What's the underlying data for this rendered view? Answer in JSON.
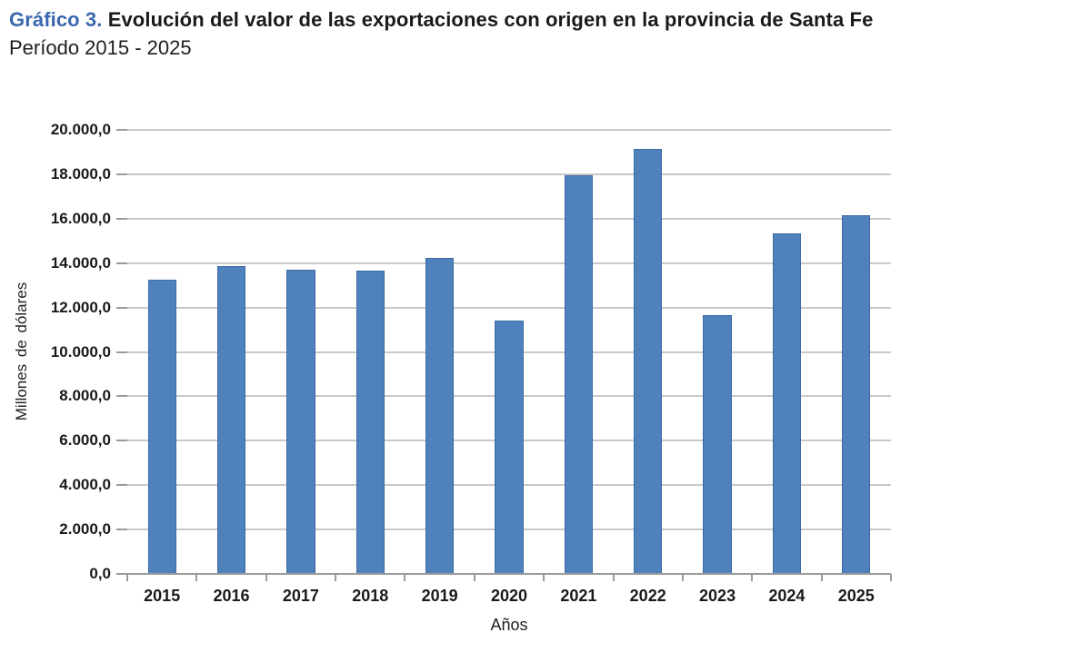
{
  "header": {
    "prefix": "Gráfico 3.",
    "title": "Evolución del valor de las exportaciones con origen en la provincia de Santa Fe",
    "subtitle": "Período 2015 - 2025"
  },
  "chart_data": {
    "type": "bar",
    "title": "Gráfico 3. Evolución del valor de las exportaciones con origen en la provincia de Santa Fe",
    "subtitle": "Período 2015 - 2025",
    "categories": [
      "2015",
      "2016",
      "2017",
      "2018",
      "2019",
      "2020",
      "2021",
      "2022",
      "2023",
      "2024",
      "2025"
    ],
    "values": [
      13250,
      13850,
      13700,
      13650,
      14250,
      11400,
      17950,
      19150,
      11650,
      15350,
      16150
    ],
    "xlabel": "Años",
    "ylabel": "Millones  de  dólares",
    "ylim": [
      0,
      20000
    ],
    "ytick_step": 2000,
    "ytick_labels": [
      "0,0",
      "2.000,0",
      "4.000,0",
      "6.000,0",
      "8.000,0",
      "10.000,0",
      "12.000,0",
      "14.000,0",
      "16.000,0",
      "18.000,0",
      "20.000,0"
    ],
    "grid": true,
    "legend": "none",
    "colors": {
      "bar_fill": "#4f81bd",
      "bar_border": "#3d6ba3",
      "gridline": "#c9c9c9",
      "axis": "#9a9a9a",
      "title_prefix": "#3a67ad",
      "text": "#1a1a1a"
    }
  }
}
